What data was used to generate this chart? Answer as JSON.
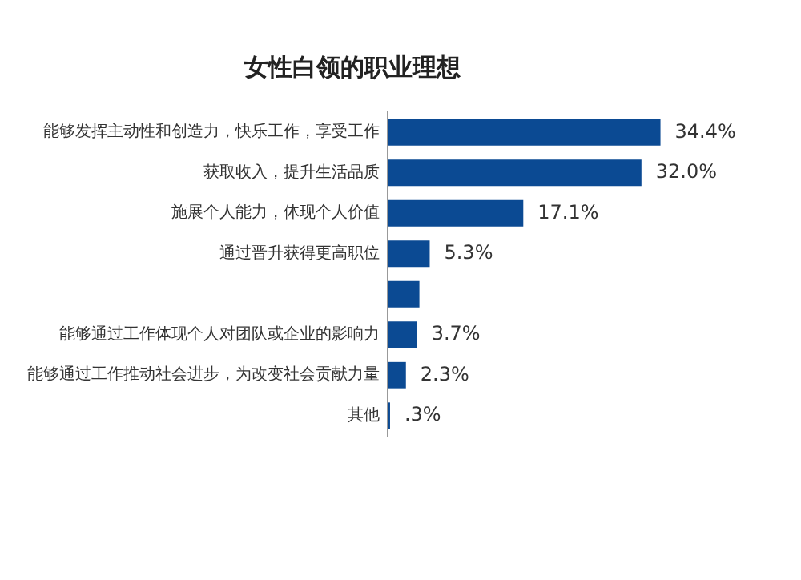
{
  "chart_data": {
    "type": "bar",
    "orientation": "horizontal",
    "title": "女性白领的职业理想",
    "categories": [
      "能够发挥主动性和创造力，快乐工作，享受工作",
      "获取收入，提升生活品质",
      "施展个人能力，体现个人价值",
      "通过晋升获得更高职位",
      null,
      "能够通过工作体现个人对团队或企业的影响力",
      "能够通过工作推动社会进步，为改变社会贡献力量",
      "其他"
    ],
    "values": [
      34.4,
      32.0,
      17.1,
      5.3,
      4.0,
      3.7,
      2.3,
      0.3
    ],
    "value_labels": [
      "34.4%",
      "32.0%",
      "17.1%",
      "5.3%",
      null,
      "3.7%",
      "2.3%",
      ".3%"
    ],
    "color": "#0b4a93",
    "grid": false,
    "legend": false,
    "tick_labels": "y"
  }
}
